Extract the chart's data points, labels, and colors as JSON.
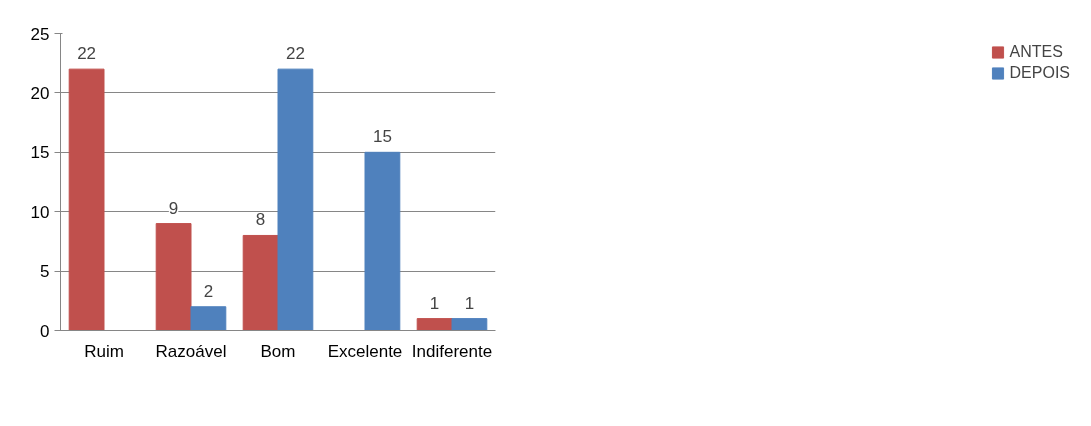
{
  "chart_data": {
    "type": "bar",
    "categories": [
      "Ruim",
      "Razoável",
      "Bom",
      "Excelente",
      "Indiferente"
    ],
    "series": [
      {
        "name": "ANTES",
        "color": "#c0504d",
        "values": [
          22,
          9,
          8,
          null,
          1
        ]
      },
      {
        "name": "DEPOIS",
        "color": "#4f81bd",
        "values": [
          null,
          2,
          22,
          15,
          1
        ]
      }
    ],
    "ylim": [
      0,
      25
    ],
    "yticks": [
      0,
      5,
      10,
      15,
      20,
      25
    ],
    "grid": "y",
    "legend": "right",
    "data_labels": true
  }
}
